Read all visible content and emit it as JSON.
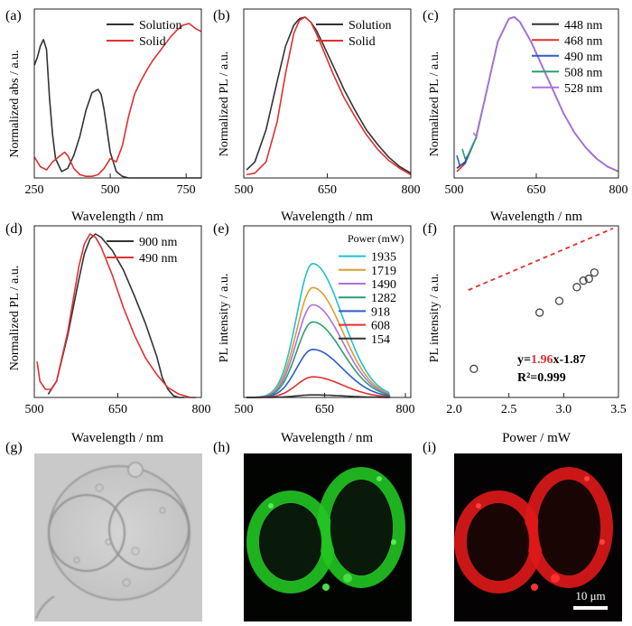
{
  "figure": {
    "panels": [
      {
        "id": "a",
        "label": "(a)"
      },
      {
        "id": "b",
        "label": "(b)"
      },
      {
        "id": "c",
        "label": "(c)"
      },
      {
        "id": "d",
        "label": "(d)"
      },
      {
        "id": "e",
        "label": "(e)"
      },
      {
        "id": "f",
        "label": "(f)"
      },
      {
        "id": "g",
        "label": "(g)"
      },
      {
        "id": "h",
        "label": "(h)"
      },
      {
        "id": "i",
        "label": "(i)"
      }
    ],
    "scale_bar": "10 μm",
    "image_colors": {
      "g": "#bdbdbd",
      "h": "#22c522",
      "i": "#e01818"
    }
  },
  "chart_data": [
    {
      "panel": "a",
      "type": "line",
      "xlabel": "Wavelength / nm",
      "ylabel": "Normalized abs / a.u.",
      "xlim": [
        250,
        800
      ],
      "ylim": [
        0,
        1.05
      ],
      "xticks": [
        250,
        500,
        750
      ],
      "xtick_labels": [
        "250",
        "500",
        "750"
      ],
      "legend": "top-right",
      "series": [
        {
          "name": "Solution",
          "color": "#333333",
          "x": [
            250,
            260,
            270,
            280,
            290,
            300,
            310,
            320,
            340,
            360,
            380,
            400,
            420,
            440,
            460,
            470,
            480,
            500,
            520,
            540,
            560,
            600,
            700,
            800
          ],
          "y": [
            0.7,
            0.75,
            0.82,
            0.86,
            0.8,
            0.5,
            0.27,
            0.12,
            0.04,
            0.06,
            0.14,
            0.26,
            0.42,
            0.53,
            0.55,
            0.52,
            0.42,
            0.16,
            0.04,
            0.01,
            0.0,
            0.0,
            0.0,
            0.0
          ]
        },
        {
          "name": "Solid",
          "color": "#e03030",
          "x": [
            250,
            270,
            290,
            310,
            330,
            350,
            360,
            380,
            400,
            420,
            440,
            460,
            480,
            500,
            520,
            540,
            560,
            580,
            600,
            620,
            640,
            660,
            680,
            700,
            720,
            740,
            760,
            780,
            800
          ],
          "y": [
            0.13,
            0.07,
            0.05,
            0.1,
            0.13,
            0.16,
            0.14,
            0.06,
            0.02,
            0.01,
            0.01,
            0.02,
            0.06,
            0.12,
            0.1,
            0.2,
            0.38,
            0.52,
            0.6,
            0.67,
            0.73,
            0.78,
            0.83,
            0.88,
            0.92,
            0.95,
            0.96,
            0.93,
            0.91
          ]
        }
      ]
    },
    {
      "panel": "b",
      "type": "line",
      "xlabel": "Wavelength / nm",
      "ylabel": "Normalized PL / a.u.",
      "xlim": [
        500,
        800
      ],
      "ylim": [
        0,
        1.05
      ],
      "xticks": [
        500,
        650,
        800
      ],
      "xtick_labels": [
        "500",
        "650",
        "800"
      ],
      "legend": "top-right",
      "series": [
        {
          "name": "Solution",
          "color": "#333333",
          "x": [
            505,
            520,
            540,
            560,
            575,
            590,
            600,
            610,
            620,
            630,
            640,
            660,
            680,
            700,
            720,
            740,
            760,
            780,
            800
          ],
          "y": [
            0.05,
            0.1,
            0.3,
            0.6,
            0.82,
            0.95,
            0.99,
            1.0,
            0.97,
            0.92,
            0.85,
            0.7,
            0.55,
            0.42,
            0.3,
            0.21,
            0.13,
            0.07,
            0.03
          ]
        },
        {
          "name": "Solid",
          "color": "#e03030",
          "x": [
            505,
            520,
            540,
            560,
            575,
            590,
            600,
            610,
            620,
            630,
            640,
            660,
            680,
            700,
            720,
            740,
            760,
            780,
            800
          ],
          "y": [
            0.02,
            0.03,
            0.1,
            0.35,
            0.65,
            0.9,
            0.98,
            1.0,
            0.97,
            0.9,
            0.82,
            0.65,
            0.5,
            0.38,
            0.27,
            0.18,
            0.11,
            0.06,
            0.02
          ]
        }
      ]
    },
    {
      "panel": "c",
      "type": "line",
      "xlabel": "Wavelength / nm",
      "ylabel": "Normalized PL / a.u.",
      "xlim": [
        500,
        800
      ],
      "ylim": [
        0,
        1.05
      ],
      "xticks": [
        500,
        650,
        800
      ],
      "xtick_labels": [
        "500",
        "650",
        "800"
      ],
      "legend": "top-right",
      "series": [
        {
          "name": "448 nm",
          "color": "#333333",
          "x": [
            505,
            520,
            540,
            560,
            580,
            600,
            610,
            620,
            640,
            660,
            680,
            700,
            720,
            740,
            760,
            780,
            800
          ],
          "y": [
            0.06,
            0.1,
            0.25,
            0.55,
            0.85,
            0.99,
            1.0,
            0.97,
            0.85,
            0.7,
            0.55,
            0.4,
            0.28,
            0.19,
            0.12,
            0.07,
            0.04
          ]
        },
        {
          "name": "468 nm",
          "color": "#e03030",
          "x": [
            505,
            520,
            540,
            560,
            580,
            600,
            610,
            620,
            640,
            660,
            680,
            700,
            720,
            740,
            760,
            780,
            800
          ],
          "y": [
            0.04,
            0.09,
            0.25,
            0.55,
            0.85,
            0.99,
            1.0,
            0.97,
            0.85,
            0.7,
            0.55,
            0.4,
            0.28,
            0.19,
            0.12,
            0.07,
            0.04
          ]
        },
        {
          "name": "490 nm",
          "color": "#2a5cc8",
          "x": [
            505,
            510,
            520,
            540,
            560,
            580,
            600,
            610,
            620,
            640,
            660,
            680,
            700,
            720,
            740,
            760,
            780,
            800
          ],
          "y": [
            0.14,
            0.08,
            0.09,
            0.25,
            0.55,
            0.85,
            0.99,
            1.0,
            0.97,
            0.85,
            0.7,
            0.55,
            0.4,
            0.28,
            0.19,
            0.12,
            0.07,
            0.04
          ]
        },
        {
          "name": "508 nm",
          "color": "#2aa070",
          "x": [
            515,
            520,
            525,
            540,
            560,
            580,
            600,
            610,
            620,
            640,
            660,
            680,
            700,
            720,
            740,
            760,
            780,
            800
          ],
          "y": [
            0.18,
            0.12,
            0.14,
            0.25,
            0.55,
            0.85,
            0.99,
            1.0,
            0.97,
            0.85,
            0.7,
            0.55,
            0.4,
            0.28,
            0.19,
            0.12,
            0.07,
            0.04
          ]
        },
        {
          "name": "528 nm",
          "color": "#b070e0",
          "x": [
            535,
            540,
            560,
            580,
            600,
            610,
            620,
            640,
            660,
            680,
            700,
            720,
            740,
            760,
            780,
            800
          ],
          "y": [
            0.28,
            0.26,
            0.55,
            0.85,
            0.99,
            1.0,
            0.97,
            0.85,
            0.7,
            0.55,
            0.4,
            0.28,
            0.19,
            0.12,
            0.07,
            0.04
          ]
        }
      ]
    },
    {
      "panel": "d",
      "type": "line",
      "xlabel": "Wavelength / nm",
      "ylabel": "Normalized PL / a.u.",
      "xlim": [
        500,
        800
      ],
      "ylim": [
        0,
        1.05
      ],
      "xticks": [
        500,
        650,
        800
      ],
      "xtick_labels": [
        "500",
        "650",
        "800"
      ],
      "legend": "top-right",
      "series": [
        {
          "name": "900 nm",
          "color": "#333333",
          "x": [
            525,
            540,
            560,
            580,
            590,
            600,
            610,
            620,
            640,
            660,
            680,
            700,
            720,
            730,
            740,
            750,
            760,
            770
          ],
          "y": [
            0.02,
            0.1,
            0.38,
            0.72,
            0.88,
            0.97,
            1.0,
            0.98,
            0.9,
            0.78,
            0.62,
            0.45,
            0.25,
            0.12,
            0.05,
            0.01,
            0.0,
            0.0
          ]
        },
        {
          "name": "490 nm",
          "color": "#e03030",
          "x": [
            505,
            510,
            520,
            530,
            540,
            560,
            580,
            590,
            600,
            610,
            620,
            640,
            660,
            680,
            700,
            720,
            740,
            760,
            780,
            790
          ],
          "y": [
            0.22,
            0.1,
            0.05,
            0.05,
            0.1,
            0.4,
            0.8,
            0.94,
            1.0,
            0.98,
            0.92,
            0.75,
            0.55,
            0.38,
            0.24,
            0.14,
            0.06,
            0.02,
            0.0,
            0.0
          ]
        }
      ]
    },
    {
      "panel": "e",
      "type": "line",
      "xlabel": "Wavelength / nm",
      "ylabel": "PL intensity / a.u.",
      "xlim": [
        500,
        810
      ],
      "ylim": [
        0,
        1.0
      ],
      "xticks": [
        500,
        650,
        800
      ],
      "xtick_labels": [
        "500",
        "650",
        "800"
      ],
      "legend": "top-right",
      "legend_title": "Power (mW)",
      "peak_nm": 628,
      "cutoff_nm": 770,
      "series": [
        {
          "name": "1935",
          "color": "#22c0d0",
          "peak": 0.78
        },
        {
          "name": "1719",
          "color": "#d8a030",
          "peak": 0.64
        },
        {
          "name": "1490",
          "color": "#b070e0",
          "peak": 0.54
        },
        {
          "name": "1282",
          "color": "#2aa070",
          "peak": 0.44
        },
        {
          "name": "918",
          "color": "#2a5cc8",
          "peak": 0.28
        },
        {
          "name": "608",
          "color": "#e03030",
          "peak": 0.12
        },
        {
          "name": "154",
          "color": "#333333",
          "peak": 0.015
        }
      ]
    },
    {
      "panel": "f",
      "type": "scatter",
      "xlabel": "Power / mW",
      "ylabel": "PL intensity / a.u.",
      "xlim": [
        2.0,
        3.5
      ],
      "ylim": [
        -2.2,
        5.0
      ],
      "xticks": [
        2.0,
        2.5,
        3.0,
        3.5
      ],
      "xtick_labels": [
        "2.0",
        "2.5",
        "3.0",
        "3.5"
      ],
      "x": [
        2.18,
        2.78,
        2.96,
        3.12,
        3.18,
        3.23,
        3.28
      ],
      "y": [
        -1.0,
        1.36,
        1.85,
        2.43,
        2.7,
        2.78,
        3.04
      ],
      "fit": {
        "slope": 1.96,
        "intercept": -1.87,
        "color": "#e03030",
        "eq_prefix": "y=",
        "eq_slope": "1.96",
        "eq_suffix": "x-1.87",
        "r2": "R²=0.999"
      }
    }
  ]
}
